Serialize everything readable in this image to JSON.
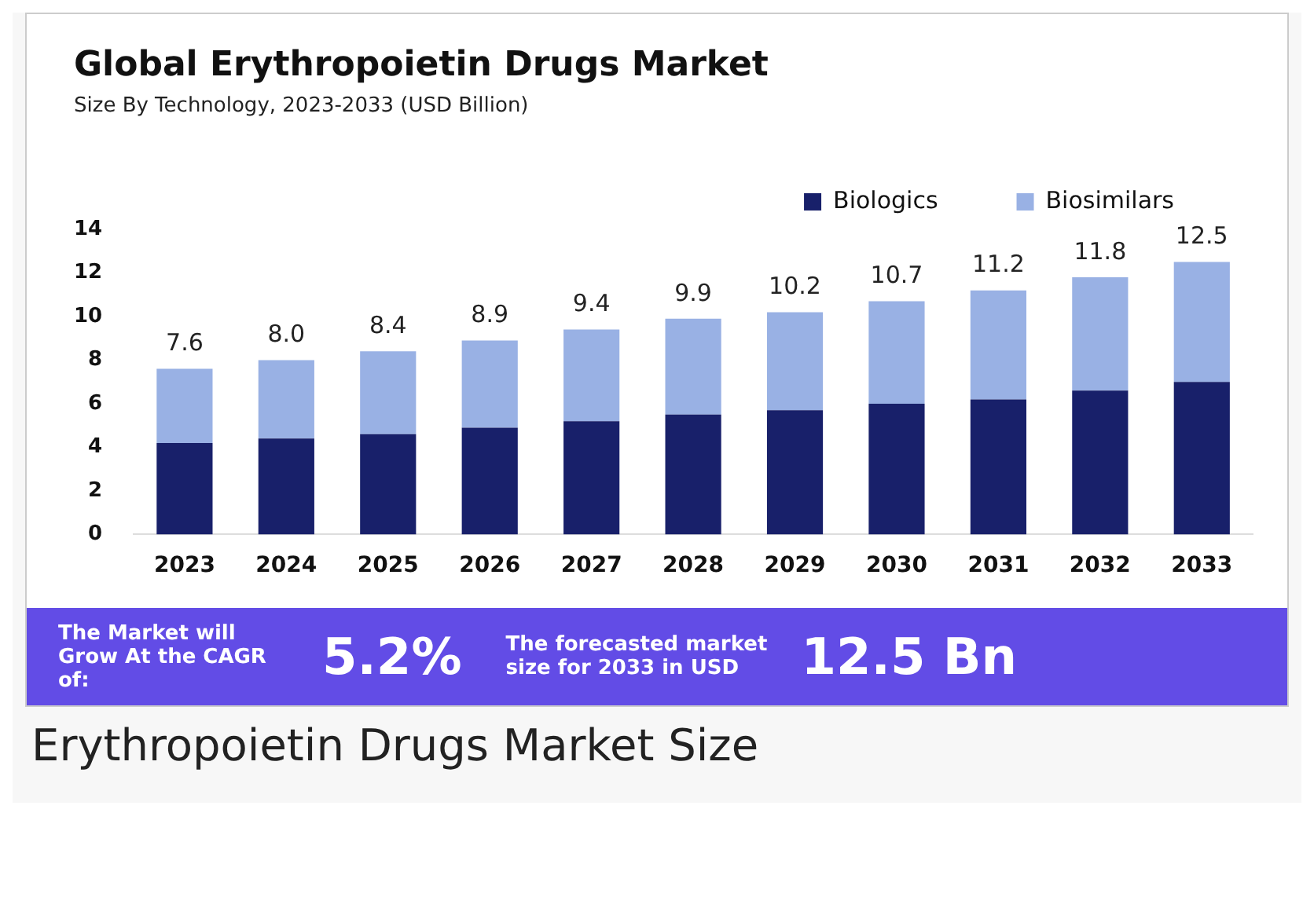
{
  "chart_data": {
    "type": "bar",
    "title": "Global Erythropoietin Drugs Market",
    "subtitle": "Size By Technology, 2023-2033 (USD Billion)",
    "categories": [
      "2023",
      "2024",
      "2025",
      "2026",
      "2027",
      "2028",
      "2029",
      "2030",
      "2031",
      "2032",
      "2033"
    ],
    "stacked": true,
    "series": [
      {
        "name": "Biologics",
        "color": "#18206a",
        "values": [
          4.2,
          4.4,
          4.6,
          4.9,
          5.2,
          5.5,
          5.7,
          6.0,
          6.2,
          6.6,
          7.0
        ]
      },
      {
        "name": "Biosimilars",
        "color": "#99b1e4",
        "values": [
          3.4,
          3.6,
          3.8,
          4.0,
          4.2,
          4.4,
          4.5,
          4.7,
          5.0,
          5.2,
          5.5
        ]
      }
    ],
    "totals": [
      "7.6",
      "8.0",
      "8.4",
      "8.9",
      "9.4",
      "9.9",
      "10.2",
      "10.7",
      "11.2",
      "11.8",
      "12.5"
    ],
    "ylim": [
      0,
      14
    ],
    "yticks": [
      0,
      2,
      4,
      6,
      8,
      10,
      12,
      14
    ],
    "grid": false,
    "legend": "top right",
    "annotations": [
      "The Market will Grow At the CAGR of:",
      "5.2%",
      "The forecasted market size for 2033 in USD",
      "12.5 Bn",
      "Erythropoietin Drugs Market Size"
    ]
  }
}
